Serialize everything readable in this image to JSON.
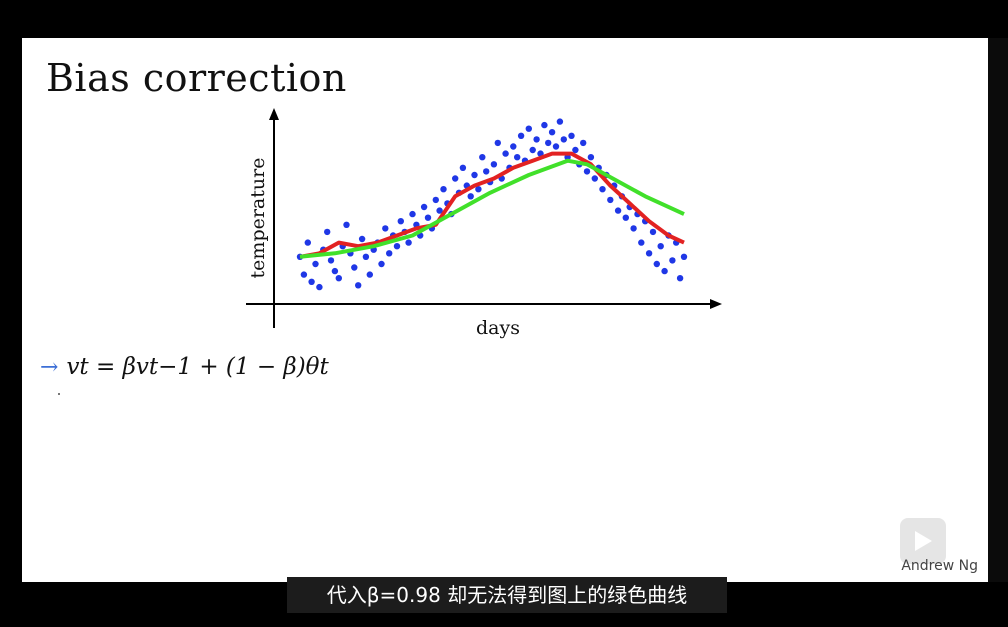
{
  "slide": {
    "title": "Bias correction",
    "author": "Andrew Ng",
    "formula": {
      "arrow": "→",
      "text": "vt = βvt−1 + (1 − β)θt"
    }
  },
  "subtitle": "代入β=0.98 却无法得到图上的绿色曲线",
  "icons": {
    "play": "play-icon",
    "arrow": "arrow-right-icon"
  },
  "colors": {
    "points": "#1f37e6",
    "red_curve": "#e22222",
    "green_curve": "#41e02a",
    "background": "#000000",
    "slide": "#ffffff"
  },
  "chart_data": {
    "type": "scatter",
    "xlabel": "days",
    "ylabel": "temperature",
    "ylim": [
      0,
      100
    ],
    "series": [
      {
        "kind": "points",
        "x": [
          1,
          2,
          3,
          4,
          5,
          6,
          7,
          8,
          9,
          10,
          11,
          12,
          13,
          14,
          15,
          16,
          17,
          18,
          19,
          20,
          21,
          22,
          23,
          24,
          25,
          26,
          27,
          28,
          29,
          30,
          31,
          32,
          33,
          34,
          35,
          36,
          37,
          38,
          39,
          40,
          41,
          42,
          43,
          44,
          45,
          46,
          47,
          48,
          49,
          50,
          51,
          52,
          53,
          54,
          55,
          56,
          57,
          58,
          59,
          60,
          61,
          62,
          63,
          64,
          65,
          66,
          67,
          68,
          69,
          70,
          71,
          72,
          73,
          74,
          75,
          76,
          77,
          78,
          79,
          80,
          81,
          82,
          83,
          84,
          85,
          86,
          87,
          88,
          89,
          90,
          91,
          92,
          93,
          94,
          95,
          96,
          97,
          98,
          99,
          100
        ],
        "y": [
          22,
          12,
          30,
          8,
          18,
          5,
          26,
          36,
          20,
          14,
          10,
          28,
          40,
          24,
          16,
          6,
          32,
          22,
          12,
          26,
          30,
          18,
          38,
          24,
          34,
          28,
          42,
          36,
          30,
          46,
          40,
          34,
          50,
          44,
          38,
          54,
          48,
          60,
          52,
          46,
          66,
          58,
          72,
          62,
          56,
          68,
          60,
          78,
          70,
          64,
          74,
          86,
          66,
          80,
          72,
          84,
          78,
          90,
          76,
          94,
          82,
          88,
          80,
          96,
          86,
          92,
          84,
          98,
          88,
          78,
          90,
          82,
          74,
          86,
          70,
          78,
          66,
          72,
          60,
          68,
          54,
          62,
          48,
          56,
          44,
          50,
          38,
          46,
          30,
          42,
          24,
          36,
          18,
          28,
          14,
          34,
          20,
          30,
          10,
          22
        ]
      },
      {
        "kind": "line",
        "x": [
          1,
          6,
          11,
          16,
          21,
          26,
          31,
          36,
          41,
          46,
          51,
          56,
          61,
          66,
          71,
          76,
          81,
          86,
          91,
          96,
          100
        ],
        "y": [
          22,
          24,
          30,
          28,
          30,
          34,
          38,
          40,
          56,
          62,
          66,
          72,
          76,
          80,
          80,
          74,
          62,
          52,
          42,
          34,
          30
        ]
      },
      {
        "kind": "line",
        "x": [
          1,
          10,
          20,
          30,
          40,
          50,
          60,
          70,
          75,
          80,
          90,
          100
        ],
        "y": [
          22,
          24,
          28,
          34,
          46,
          58,
          68,
          76,
          74,
          68,
          56,
          46
        ]
      }
    ]
  }
}
